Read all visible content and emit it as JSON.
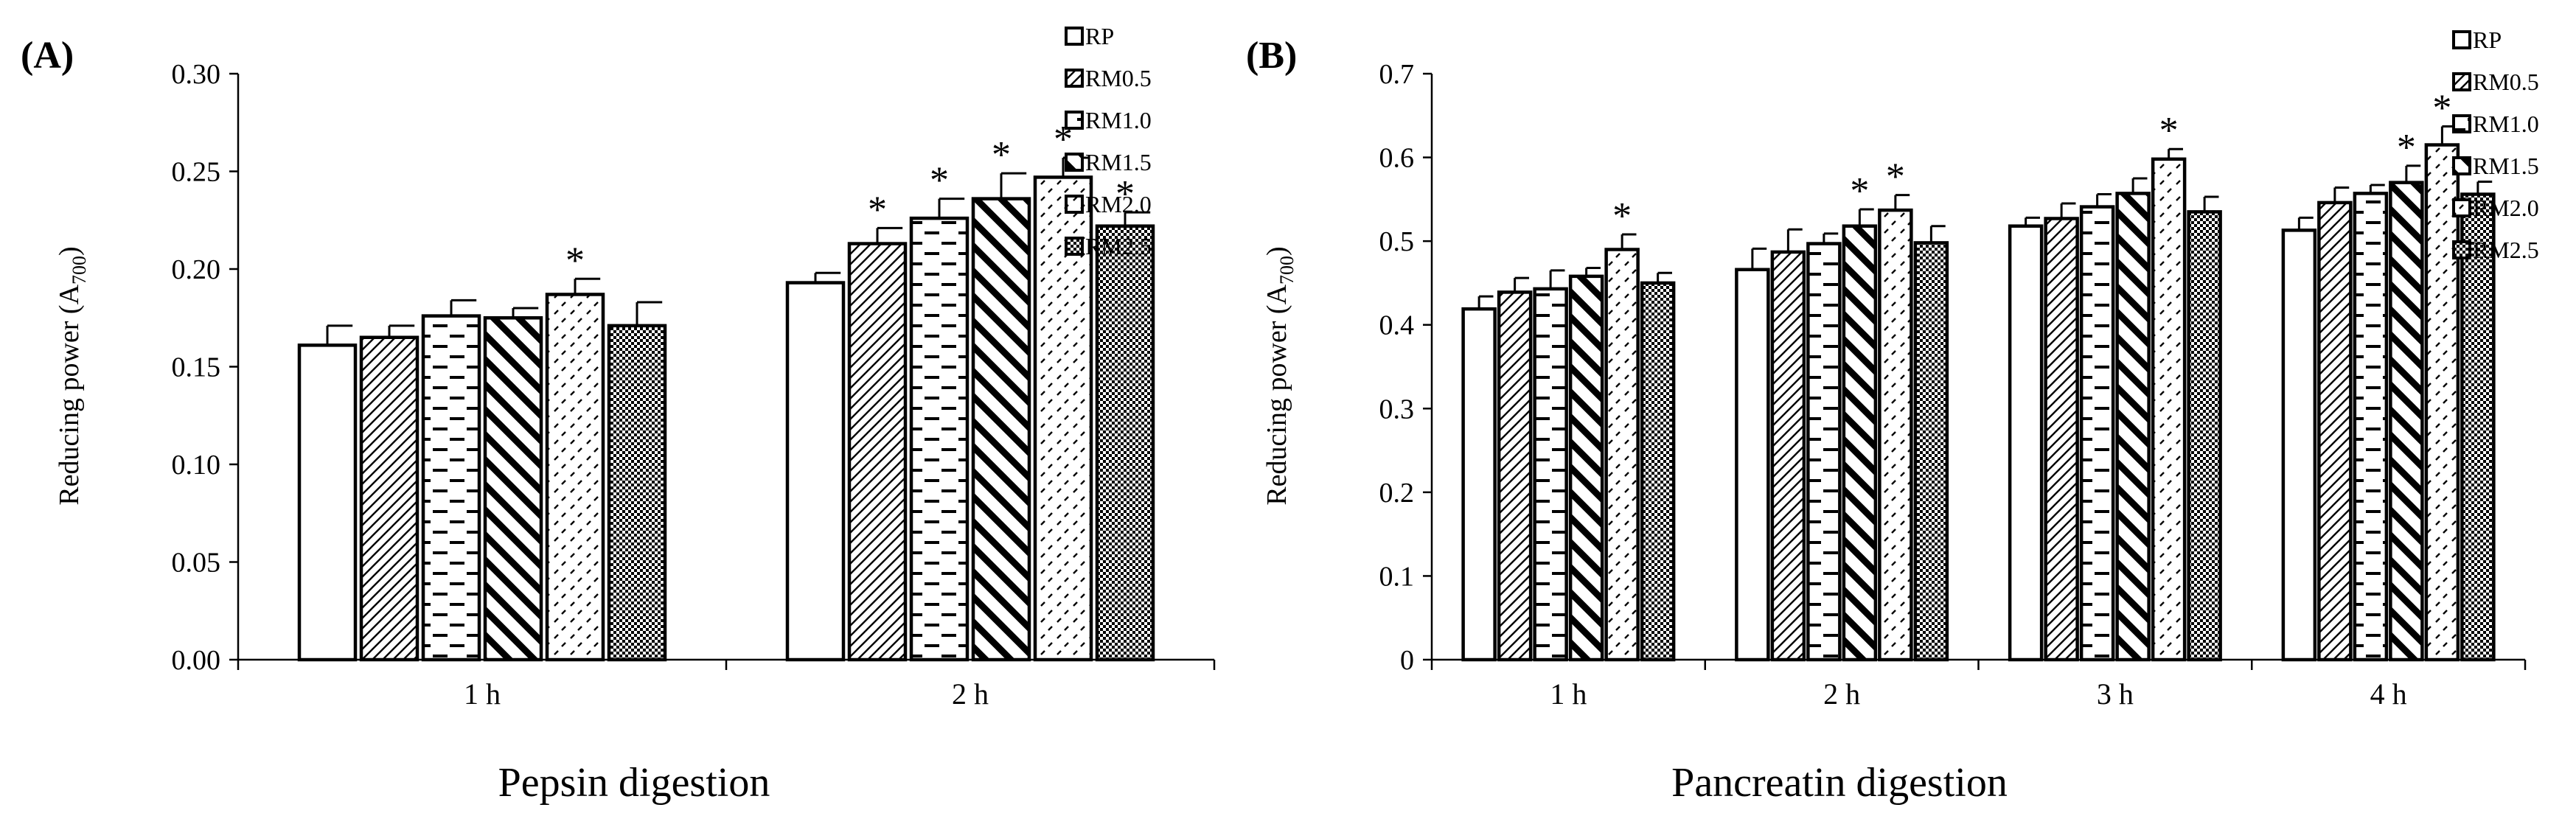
{
  "chart_data": [
    {
      "type": "bar",
      "panel_label": "(A)",
      "xlabel": "Pepsin digestion",
      "ylabel_main": "Reducing power (A",
      "ylabel_sub": "700",
      "ylabel_close": ")",
      "ylim": [
        0,
        0.3
      ],
      "yticks": [
        "0.00",
        "0.05",
        "0.10",
        "0.15",
        "0.20",
        "0.25",
        "0.30"
      ],
      "categories": [
        "1 h",
        "2 h"
      ],
      "legend_position": "top-right",
      "series": [
        {
          "name": "RP",
          "values": [
            0.161,
            0.193
          ],
          "errors": [
            0.01,
            0.005
          ],
          "significant": [
            false,
            false
          ]
        },
        {
          "name": "RM0.5",
          "values": [
            0.165,
            0.213
          ],
          "errors": [
            0.006,
            0.008
          ],
          "significant": [
            false,
            true
          ]
        },
        {
          "name": "RM1.0",
          "values": [
            0.176,
            0.226
          ],
          "errors": [
            0.008,
            0.01
          ],
          "significant": [
            false,
            true
          ]
        },
        {
          "name": "RM1.5",
          "values": [
            0.175,
            0.236
          ],
          "errors": [
            0.005,
            0.013
          ],
          "significant": [
            false,
            true
          ]
        },
        {
          "name": "RM2.0",
          "values": [
            0.187,
            0.247
          ],
          "errors": [
            0.008,
            0.01
          ],
          "significant": [
            true,
            true
          ]
        },
        {
          "name": "RM2.5",
          "values": [
            0.171,
            0.222
          ],
          "errors": [
            0.012,
            0.007
          ],
          "significant": [
            false,
            true
          ]
        }
      ],
      "significance_marker": "*"
    },
    {
      "type": "bar",
      "panel_label": "(B)",
      "xlabel": "Pancreatin digestion",
      "ylabel_main": "Reducing power (A",
      "ylabel_sub": "700",
      "ylabel_close": ")",
      "ylim": [
        0,
        0.7
      ],
      "yticks": [
        "0",
        "0.1",
        "0.2",
        "0.3",
        "0.4",
        "0.5",
        "0.6",
        "0.7"
      ],
      "categories": [
        "1 h",
        "2 h",
        "3 h",
        "4 h"
      ],
      "legend_position": "top-right",
      "series": [
        {
          "name": "RP",
          "values": [
            0.419,
            0.466,
            0.518,
            0.513
          ],
          "errors": [
            0.015,
            0.025,
            0.01,
            0.015
          ],
          "significant": [
            false,
            false,
            false,
            false
          ]
        },
        {
          "name": "RM0.5",
          "values": [
            0.439,
            0.487,
            0.527,
            0.546
          ],
          "errors": [
            0.017,
            0.027,
            0.018,
            0.018
          ],
          "significant": [
            false,
            false,
            false,
            false
          ]
        },
        {
          "name": "RM1.0",
          "values": [
            0.443,
            0.497,
            0.541,
            0.557
          ],
          "errors": [
            0.022,
            0.012,
            0.015,
            0.01
          ],
          "significant": [
            false,
            false,
            false,
            false
          ]
        },
        {
          "name": "RM1.5",
          "values": [
            0.458,
            0.518,
            0.557,
            0.57
          ],
          "errors": [
            0.01,
            0.02,
            0.018,
            0.02
          ],
          "significant": [
            false,
            true,
            false,
            true
          ]
        },
        {
          "name": "RM2.0",
          "values": [
            0.49,
            0.537,
            0.598,
            0.615
          ],
          "errors": [
            0.018,
            0.018,
            0.012,
            0.022
          ],
          "significant": [
            true,
            true,
            true,
            true
          ]
        },
        {
          "name": "RM2.5",
          "values": [
            0.45,
            0.498,
            0.535,
            0.556
          ],
          "errors": [
            0.012,
            0.02,
            0.018,
            0.015
          ],
          "significant": [
            false,
            false,
            false,
            false
          ]
        }
      ],
      "significance_marker": "*"
    }
  ]
}
